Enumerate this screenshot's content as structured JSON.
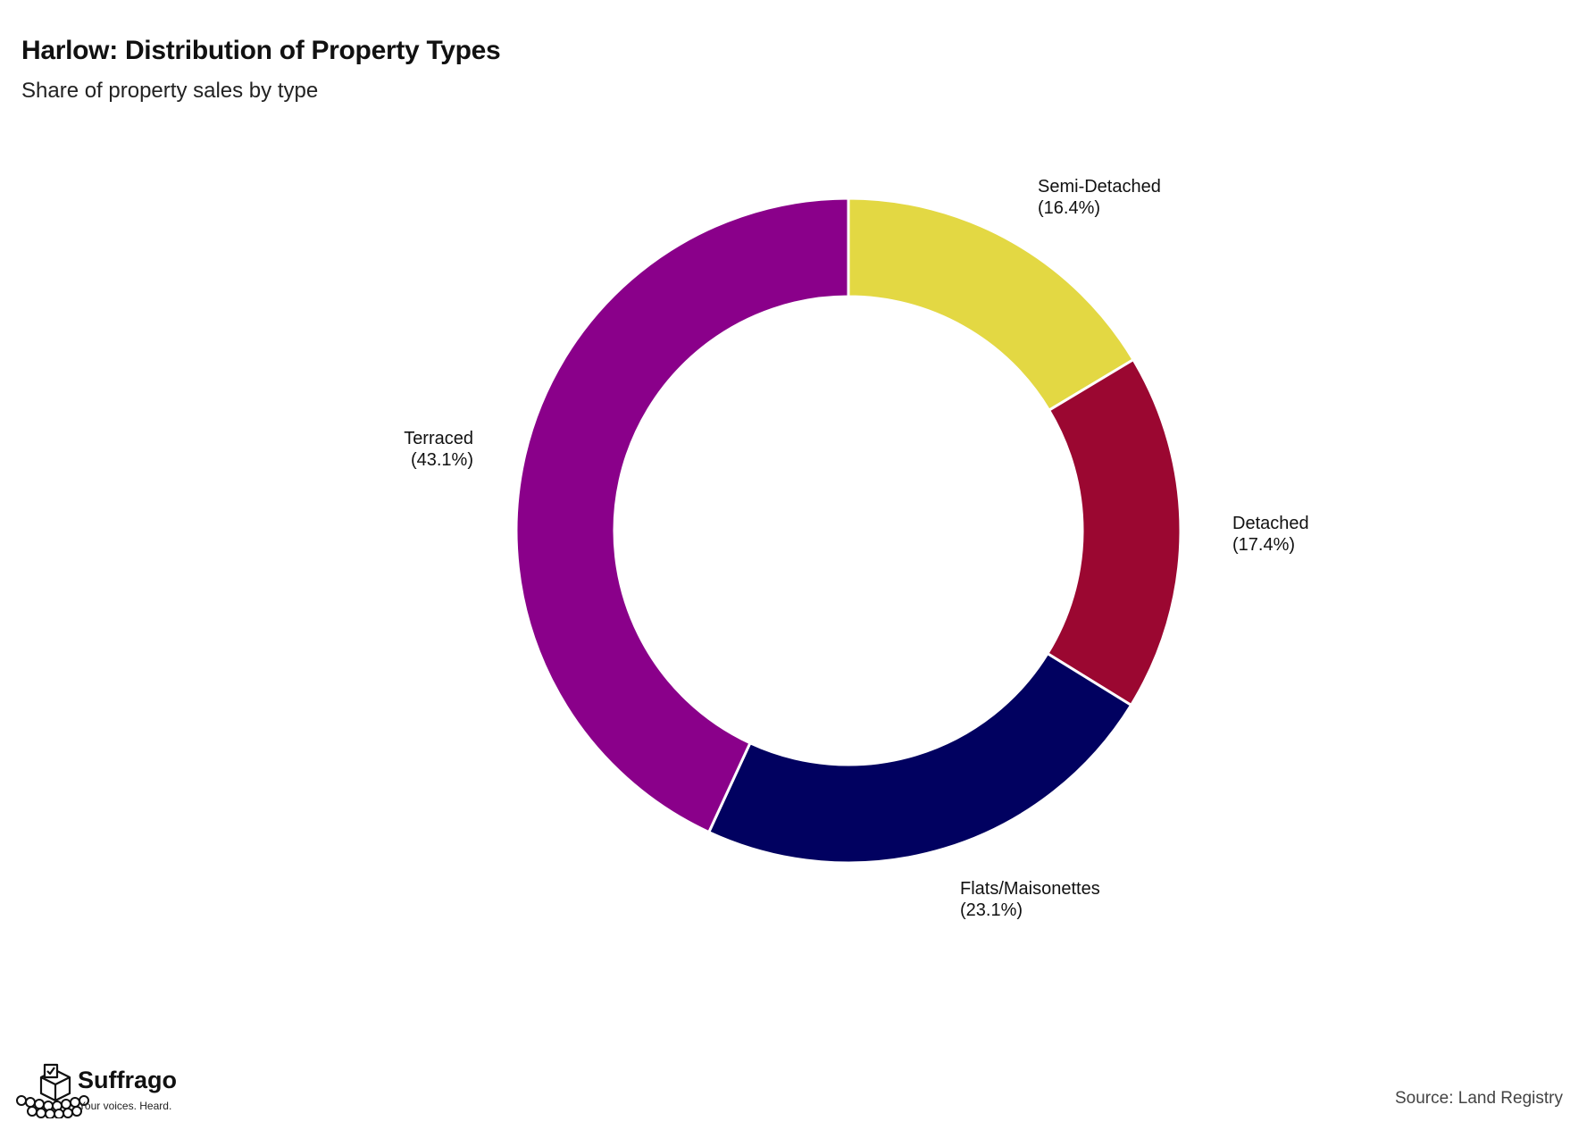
{
  "chart_data": {
    "type": "pie",
    "variant": "donut",
    "title": "Harlow: Distribution of Property Types",
    "subtitle": "Share of property sales by type",
    "slices": [
      {
        "label": "Semi-Detached",
        "value": 16.4,
        "display": "(16.4%)",
        "color": "#e3d843"
      },
      {
        "label": "Detached",
        "value": 17.4,
        "display": "(17.4%)",
        "color": "#9b0731"
      },
      {
        "label": "Flats/Maisonettes",
        "value": 23.1,
        "display": "(23.1%)",
        "color": "#010160"
      },
      {
        "label": "Terraced",
        "value": 43.1,
        "display": "(43.1%)",
        "color": "#8a008a"
      }
    ],
    "start_angle": "12 o'clock",
    "direction": "clockwise",
    "legend": "none"
  },
  "branding": {
    "name": "Suffrago",
    "tagline": "Your voices. Heard.",
    "icon": "ballot-box-crowd-icon"
  },
  "source": "Source: Land Registry"
}
